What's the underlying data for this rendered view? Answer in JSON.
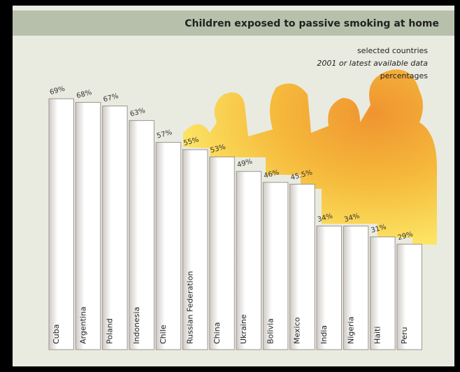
{
  "chart_data": {
    "type": "bar",
    "title": "Children exposed to passive smoking at home",
    "subtitle": [
      "selected countries",
      "2001 or latest available data",
      "percentages"
    ],
    "categories": [
      "Cuba",
      "Argentina",
      "Poland",
      "Indonesia",
      "Chile",
      "Russian Federation",
      "China",
      "Ukraine",
      "Bolivia",
      "Mexico",
      "India",
      "Nigeria",
      "Haiti",
      "Peru"
    ],
    "values": [
      69,
      68,
      67,
      63,
      57,
      55,
      53,
      49,
      46,
      45.5,
      34,
      34,
      31,
      29
    ],
    "value_labels": [
      "69%",
      "68%",
      "67%",
      "63%",
      "57%",
      "55%",
      "53%",
      "49%",
      "46%",
      "45.5%",
      "34%",
      "34%",
      "31%",
      "29%"
    ],
    "color": "#ffffff"
  }
}
